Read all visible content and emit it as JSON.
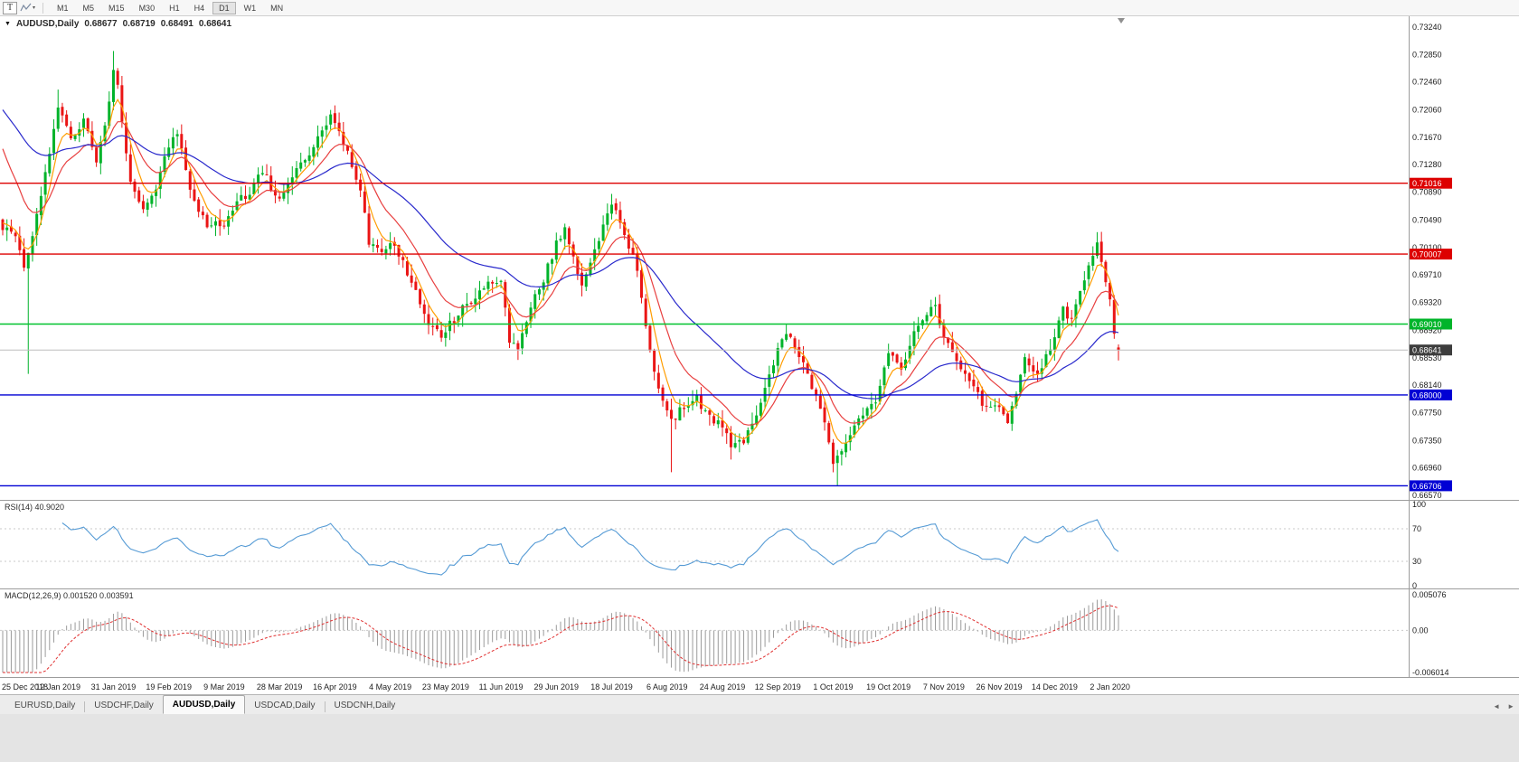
{
  "colors": {
    "bull": "#00b32a",
    "bear": "#ea1515",
    "rsi_line": "#569bd5",
    "macd_hist": "#9b9b9b",
    "macd_signal": "#e03030",
    "axis_text": "#1c1c1c",
    "separator": "#9c9c9c"
  },
  "toolbar": {
    "text_tool": "T",
    "dropdown_caret": "▾",
    "timeframes": [
      "M1",
      "M5",
      "M15",
      "M30",
      "H1",
      "H4",
      "D1",
      "W1",
      "MN"
    ],
    "active_timeframe": "D1"
  },
  "chart": {
    "expand_icon": "▼",
    "symbol": "AUDUSD,Daily",
    "ohlc": {
      "open": "0.68677",
      "high": "0.68719",
      "low": "0.68491",
      "close": "0.68641"
    }
  },
  "price_axis": {
    "labels": [
      "0.73240",
      "0.72850",
      "0.72460",
      "0.72060",
      "0.71670",
      "0.71280",
      "0.70890",
      "0.70490",
      "0.70100",
      "0.69710",
      "0.69320",
      "0.68920",
      "0.68530",
      "0.68140",
      "0.67750",
      "0.67350",
      "0.66960",
      "0.66570"
    ]
  },
  "time_axis": {
    "bars_per_label": 13,
    "labels": [
      "25 Dec 2018",
      "12 Jan 2019",
      "31 Jan 2019",
      "19 Feb 2019",
      "9 Mar 2019",
      "28 Mar 2019",
      "16 Apr 2019",
      "4 May 2019",
      "23 May 2019",
      "11 Jun 2019",
      "29 Jun 2019",
      "18 Jul 2019",
      "6 Aug 2019",
      "24 Aug 2019",
      "12 Sep 2019",
      "1 Oct 2019",
      "19 Oct 2019",
      "7 Nov 2019",
      "26 Nov 2019",
      "14 Dec 2019",
      "2 Jan 2020"
    ]
  },
  "rsi_pane": {
    "label": "RSI(14) 40.9020",
    "levels": [
      "100",
      "70",
      "30",
      "0"
    ],
    "dotted_levels": [
      70,
      30
    ]
  },
  "macd_pane": {
    "label": "MACD(12,26,9) 0.001520 0.003591",
    "axis": [
      "0.005076",
      "0.00",
      "-0.006014"
    ]
  },
  "tabs": {
    "scroll_left_icon": "◄",
    "scroll_right_icon": "►",
    "items": [
      {
        "label": "EURUSD,Daily",
        "active": false
      },
      {
        "label": "USDCHF,Daily",
        "active": false
      },
      {
        "label": "AUDUSD,Daily",
        "active": true
      },
      {
        "label": "USDCAD,Daily",
        "active": false
      },
      {
        "label": "USDCNH,Daily",
        "active": false
      }
    ]
  },
  "chart_data": {
    "type": "candlestick",
    "symbol": "AUDUSD",
    "timeframe": "Daily",
    "ylim": [
      0.6657,
      0.7324
    ],
    "bars": 263,
    "current_ohlc": {
      "open": 0.68677,
      "high": 0.68719,
      "low": 0.68491,
      "close": 0.68641
    },
    "close_anchors": [
      [
        0,
        0.704
      ],
      [
        3,
        0.7025
      ],
      [
        5,
        0.6985
      ],
      [
        6,
        0.7
      ],
      [
        9,
        0.708
      ],
      [
        13,
        0.7215
      ],
      [
        16,
        0.7165
      ],
      [
        19,
        0.719
      ],
      [
        22,
        0.7135
      ],
      [
        24,
        0.718
      ],
      [
        26,
        0.7265
      ],
      [
        27,
        0.724
      ],
      [
        30,
        0.7105
      ],
      [
        33,
        0.7065
      ],
      [
        36,
        0.7095
      ],
      [
        39,
        0.7155
      ],
      [
        41,
        0.7175
      ],
      [
        44,
        0.709
      ],
      [
        48,
        0.704
      ],
      [
        52,
        0.7045
      ],
      [
        55,
        0.7075
      ],
      [
        58,
        0.709
      ],
      [
        61,
        0.712
      ],
      [
        63,
        0.7095
      ],
      [
        65,
        0.708
      ],
      [
        68,
        0.711
      ],
      [
        71,
        0.7135
      ],
      [
        74,
        0.7165
      ],
      [
        77,
        0.7195
      ],
      [
        79,
        0.7175
      ],
      [
        81,
        0.7145
      ],
      [
        84,
        0.7095
      ],
      [
        86,
        0.702
      ],
      [
        89,
        0.7005
      ],
      [
        91,
        0.7022
      ],
      [
        94,
        0.699
      ],
      [
        97,
        0.6945
      ],
      [
        100,
        0.6905
      ],
      [
        103,
        0.688
      ],
      [
        105,
        0.69
      ],
      [
        108,
        0.6925
      ],
      [
        111,
        0.6935
      ],
      [
        114,
        0.6965
      ],
      [
        117,
        0.696
      ],
      [
        119,
        0.688
      ],
      [
        121,
        0.6865
      ],
      [
        124,
        0.6925
      ],
      [
        127,
        0.6965
      ],
      [
        130,
        0.7015
      ],
      [
        132,
        0.7035
      ],
      [
        134,
        0.7
      ],
      [
        136,
        0.6955
      ],
      [
        139,
        0.701
      ],
      [
        141,
        0.704
      ],
      [
        143,
        0.707
      ],
      [
        145,
        0.7045
      ],
      [
        147,
        0.701
      ],
      [
        149,
        0.698
      ],
      [
        151,
        0.69
      ],
      [
        153,
        0.6835
      ],
      [
        155,
        0.679
      ],
      [
        157,
        0.676
      ],
      [
        160,
        0.6785
      ],
      [
        163,
        0.6795
      ],
      [
        166,
        0.6768
      ],
      [
        169,
        0.6756
      ],
      [
        171,
        0.6725
      ],
      [
        174,
        0.6735
      ],
      [
        177,
        0.6775
      ],
      [
        180,
        0.6825
      ],
      [
        182,
        0.6868
      ],
      [
        184,
        0.6885
      ],
      [
        186,
        0.687
      ],
      [
        188,
        0.6845
      ],
      [
        191,
        0.6795
      ],
      [
        193,
        0.6765
      ],
      [
        195,
        0.6705
      ],
      [
        196,
        0.6715
      ],
      [
        199,
        0.6745
      ],
      [
        202,
        0.6772
      ],
      [
        205,
        0.6795
      ],
      [
        208,
        0.6858
      ],
      [
        211,
        0.6835
      ],
      [
        214,
        0.6892
      ],
      [
        217,
        0.6915
      ],
      [
        219,
        0.6925
      ],
      [
        221,
        0.6885
      ],
      [
        224,
        0.6845
      ],
      [
        227,
        0.6815
      ],
      [
        230,
        0.679
      ],
      [
        232,
        0.6785
      ],
      [
        234,
        0.6782
      ],
      [
        236,
        0.6765
      ],
      [
        238,
        0.68
      ],
      [
        240,
        0.685
      ],
      [
        243,
        0.683
      ],
      [
        245,
        0.6855
      ],
      [
        247,
        0.6885
      ],
      [
        249,
        0.692
      ],
      [
        251,
        0.6905
      ],
      [
        253,
        0.695
      ],
      [
        255,
        0.6985
      ],
      [
        257,
        0.702
      ],
      [
        258,
        0.6985
      ],
      [
        259,
        0.6955
      ],
      [
        260,
        0.6935
      ],
      [
        261,
        0.689
      ],
      [
        262,
        0.68641
      ]
    ],
    "overrides": {
      "6": {
        "low": 0.683
      },
      "13": {
        "high": 0.7235
      },
      "26": {
        "high": 0.729
      },
      "77": {
        "high": 0.7206
      },
      "157": {
        "low": 0.669
      },
      "171": {
        "low": 0.6708
      },
      "196": {
        "low": 0.66706
      },
      "257": {
        "high": 0.7032
      },
      "262": {
        "open": 0.68677,
        "high": 0.68719,
        "low": 0.68491,
        "close": 0.68641
      }
    },
    "levels": [
      {
        "label": "0.71016",
        "price": 0.71016,
        "line_color": "#dd0000",
        "badge_color": "#dd0000",
        "width": 1.4
      },
      {
        "label": "0.70007",
        "price": 0.70007,
        "line_color": "#dd0000",
        "badge_color": "#dd0000",
        "width": 1.4
      },
      {
        "label": "0.69010",
        "price": 0.6901,
        "line_color": "#00c22e",
        "badge_color": "#00b42a",
        "width": 1.4
      },
      {
        "label": "0.68641",
        "price": 0.68641,
        "line_color": "#bdbdbd",
        "badge_color": "#3d3d3d",
        "width": 1,
        "current": true
      },
      {
        "label": "0.68000",
        "price": 0.68,
        "line_color": "#0000d4",
        "badge_color": "#0000d4",
        "width": 1.4
      },
      {
        "label": "0.66706",
        "price": 0.66706,
        "line_color": "#0000d4",
        "badge_color": "#0000d4",
        "width": 1.4
      }
    ],
    "moving_averages": [
      {
        "name": "fast-orange",
        "period": 5,
        "seed": 0.705,
        "color": "#ff9d00"
      },
      {
        "name": "medium-red",
        "period": 13,
        "seed": 0.717,
        "color": "#e84040"
      },
      {
        "name": "slow-blue",
        "period": 40,
        "seed": 0.7215,
        "color": "#2929cc"
      }
    ],
    "rsi": {
      "period": 14,
      "current": 40.902
    },
    "macd": {
      "fast": 12,
      "slow": 26,
      "signal": 9,
      "seed_fast": 0.708,
      "seed_slow": 0.716,
      "range": [
        -0.006014,
        0.005076
      ],
      "current_main": 0.00152,
      "current_signal": 0.003591
    }
  }
}
